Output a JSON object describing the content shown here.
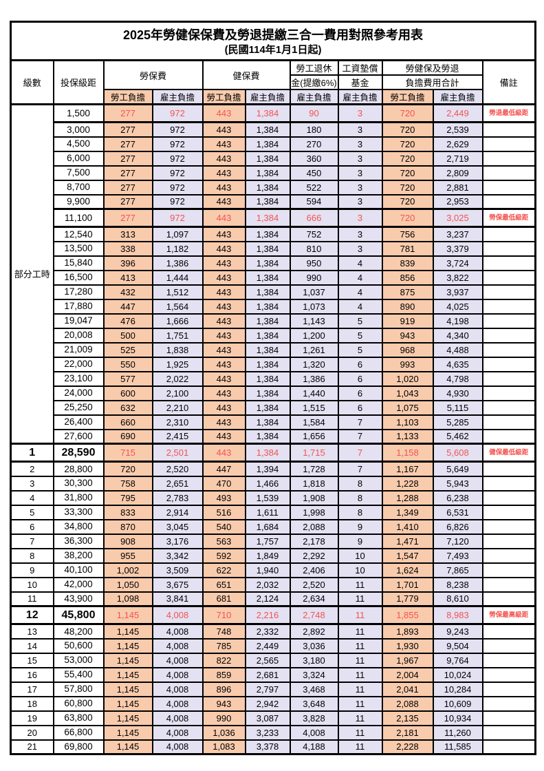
{
  "title": "2025年勞健保保費及勞退提繳三合一費用對照參考用表",
  "subtitle": "(民國114年1月1日起)",
  "header": {
    "level": "級數",
    "bracket": "投保級距",
    "labor_insurance": "勞保費",
    "health_insurance": "健保費",
    "pension_line1": "勞工退休",
    "pension_line2": "金(提繳6%)",
    "wage_fund_line1": "工資墊償",
    "wage_fund_line2": "基金",
    "total_line1": "勞健保及勞退",
    "total_line2": "負擔費用合計",
    "remarks": "備註",
    "employee": "勞工負擔",
    "employer": "雇主負擔"
  },
  "part_time_label": "部分工時",
  "part_time_rowspan": 23,
  "colors": {
    "employee_bg": "#F8CBAD",
    "employer_bg": "#E3E1F2",
    "highlight_text": "#F4534F",
    "border": "#000000",
    "background": "#FFFFFF"
  },
  "col_defs": [
    {
      "key": "br",
      "cls": "bracket",
      "name": "bracket-cell"
    },
    {
      "key": "a",
      "cls": "emp",
      "name": "labor-employee-cell"
    },
    {
      "key": "b",
      "cls": "er",
      "name": "labor-employer-cell"
    },
    {
      "key": "c",
      "cls": "emp",
      "name": "health-employee-cell"
    },
    {
      "key": "d",
      "cls": "er",
      "name": "health-employer-cell"
    },
    {
      "key": "e",
      "cls": "er",
      "name": "pension-employer-cell"
    },
    {
      "key": "f",
      "cls": "er",
      "name": "wage-fund-employer-cell"
    },
    {
      "key": "g",
      "cls": "emp",
      "name": "total-employee-cell"
    },
    {
      "key": "h",
      "cls": "er",
      "name": "total-employer-cell"
    },
    {
      "key": "rm",
      "cls": "remark",
      "name": "remark-cell"
    }
  ],
  "rows": [
    {
      "lv": "",
      "br": "1,500",
      "a": "277",
      "b": "972",
      "c": "443",
      "d": "1,384",
      "e": "90",
      "f": "3",
      "g": "720",
      "h": "2,449",
      "rm": "勞退最低級距",
      "hl": true
    },
    {
      "lv": "",
      "br": "3,000",
      "a": "277",
      "b": "972",
      "c": "443",
      "d": "1,384",
      "e": "180",
      "f": "3",
      "g": "720",
      "h": "2,539"
    },
    {
      "lv": "",
      "br": "4,500",
      "a": "277",
      "b": "972",
      "c": "443",
      "d": "1,384",
      "e": "270",
      "f": "3",
      "g": "720",
      "h": "2,629"
    },
    {
      "lv": "",
      "br": "6,000",
      "a": "277",
      "b": "972",
      "c": "443",
      "d": "1,384",
      "e": "360",
      "f": "3",
      "g": "720",
      "h": "2,719"
    },
    {
      "lv": "",
      "br": "7,500",
      "a": "277",
      "b": "972",
      "c": "443",
      "d": "1,384",
      "e": "450",
      "f": "3",
      "g": "720",
      "h": "2,809"
    },
    {
      "lv": "",
      "br": "8,700",
      "a": "277",
      "b": "972",
      "c": "443",
      "d": "1,384",
      "e": "522",
      "f": "3",
      "g": "720",
      "h": "2,881"
    },
    {
      "lv": "",
      "br": "9,900",
      "a": "277",
      "b": "972",
      "c": "443",
      "d": "1,384",
      "e": "594",
      "f": "3",
      "g": "720",
      "h": "2,953"
    },
    {
      "lv": "",
      "br": "11,100",
      "a": "277",
      "b": "972",
      "c": "443",
      "d": "1,384",
      "e": "666",
      "f": "3",
      "g": "720",
      "h": "3,025",
      "rm": "勞保最低級距",
      "hl": true
    },
    {
      "lv": "",
      "br": "12,540",
      "a": "313",
      "b": "1,097",
      "c": "443",
      "d": "1,384",
      "e": "752",
      "f": "3",
      "g": "756",
      "h": "3,237"
    },
    {
      "lv": "",
      "br": "13,500",
      "a": "338",
      "b": "1,182",
      "c": "443",
      "d": "1,384",
      "e": "810",
      "f": "3",
      "g": "781",
      "h": "3,379"
    },
    {
      "lv": "",
      "br": "15,840",
      "a": "396",
      "b": "1,386",
      "c": "443",
      "d": "1,384",
      "e": "950",
      "f": "4",
      "g": "839",
      "h": "3,724"
    },
    {
      "lv": "",
      "br": "16,500",
      "a": "413",
      "b": "1,444",
      "c": "443",
      "d": "1,384",
      "e": "990",
      "f": "4",
      "g": "856",
      "h": "3,822"
    },
    {
      "lv": "",
      "br": "17,280",
      "a": "432",
      "b": "1,512",
      "c": "443",
      "d": "1,384",
      "e": "1,037",
      "f": "4",
      "g": "875",
      "h": "3,937"
    },
    {
      "lv": "",
      "br": "17,880",
      "a": "447",
      "b": "1,564",
      "c": "443",
      "d": "1,384",
      "e": "1,073",
      "f": "4",
      "g": "890",
      "h": "4,025"
    },
    {
      "lv": "",
      "br": "19,047",
      "a": "476",
      "b": "1,666",
      "c": "443",
      "d": "1,384",
      "e": "1,143",
      "f": "5",
      "g": "919",
      "h": "4,198"
    },
    {
      "lv": "",
      "br": "20,008",
      "a": "500",
      "b": "1,751",
      "c": "443",
      "d": "1,384",
      "e": "1,200",
      "f": "5",
      "g": "943",
      "h": "4,340"
    },
    {
      "lv": "",
      "br": "21,009",
      "a": "525",
      "b": "1,838",
      "c": "443",
      "d": "1,384",
      "e": "1,261",
      "f": "5",
      "g": "968",
      "h": "4,488"
    },
    {
      "lv": "",
      "br": "22,000",
      "a": "550",
      "b": "1,925",
      "c": "443",
      "d": "1,384",
      "e": "1,320",
      "f": "6",
      "g": "993",
      "h": "4,635"
    },
    {
      "lv": "",
      "br": "23,100",
      "a": "577",
      "b": "2,022",
      "c": "443",
      "d": "1,384",
      "e": "1,386",
      "f": "6",
      "g": "1,020",
      "h": "4,798"
    },
    {
      "lv": "",
      "br": "24,000",
      "a": "600",
      "b": "2,100",
      "c": "443",
      "d": "1,384",
      "e": "1,440",
      "f": "6",
      "g": "1,043",
      "h": "4,930"
    },
    {
      "lv": "",
      "br": "25,250",
      "a": "632",
      "b": "2,210",
      "c": "443",
      "d": "1,384",
      "e": "1,515",
      "f": "6",
      "g": "1,075",
      "h": "5,115"
    },
    {
      "lv": "",
      "br": "26,400",
      "a": "660",
      "b": "2,310",
      "c": "443",
      "d": "1,384",
      "e": "1,584",
      "f": "7",
      "g": "1,103",
      "h": "5,285"
    },
    {
      "lv": "",
      "br": "27,600",
      "a": "690",
      "b": "2,415",
      "c": "443",
      "d": "1,384",
      "e": "1,656",
      "f": "7",
      "g": "1,133",
      "h": "5,462"
    },
    {
      "lv": "1",
      "br": "28,590",
      "a": "715",
      "b": "2,501",
      "c": "443",
      "d": "1,384",
      "e": "1,715",
      "f": "7",
      "g": "1,158",
      "h": "5,608",
      "rm": "健保最低級距",
      "hl": true,
      "big": true
    },
    {
      "lv": "2",
      "br": "28,800",
      "a": "720",
      "b": "2,520",
      "c": "447",
      "d": "1,394",
      "e": "1,728",
      "f": "7",
      "g": "1,167",
      "h": "5,649"
    },
    {
      "lv": "3",
      "br": "30,300",
      "a": "758",
      "b": "2,651",
      "c": "470",
      "d": "1,466",
      "e": "1,818",
      "f": "8",
      "g": "1,228",
      "h": "5,943"
    },
    {
      "lv": "4",
      "br": "31,800",
      "a": "795",
      "b": "2,783",
      "c": "493",
      "d": "1,539",
      "e": "1,908",
      "f": "8",
      "g": "1,288",
      "h": "6,238"
    },
    {
      "lv": "5",
      "br": "33,300",
      "a": "833",
      "b": "2,914",
      "c": "516",
      "d": "1,611",
      "e": "1,998",
      "f": "8",
      "g": "1,349",
      "h": "6,531"
    },
    {
      "lv": "6",
      "br": "34,800",
      "a": "870",
      "b": "3,045",
      "c": "540",
      "d": "1,684",
      "e": "2,088",
      "f": "9",
      "g": "1,410",
      "h": "6,826"
    },
    {
      "lv": "7",
      "br": "36,300",
      "a": "908",
      "b": "3,176",
      "c": "563",
      "d": "1,757",
      "e": "2,178",
      "f": "9",
      "g": "1,471",
      "h": "7,120"
    },
    {
      "lv": "8",
      "br": "38,200",
      "a": "955",
      "b": "3,342",
      "c": "592",
      "d": "1,849",
      "e": "2,292",
      "f": "10",
      "g": "1,547",
      "h": "7,493"
    },
    {
      "lv": "9",
      "br": "40,100",
      "a": "1,002",
      "b": "3,509",
      "c": "622",
      "d": "1,940",
      "e": "2,406",
      "f": "10",
      "g": "1,624",
      "h": "7,865"
    },
    {
      "lv": "10",
      "br": "42,000",
      "a": "1,050",
      "b": "3,675",
      "c": "651",
      "d": "2,032",
      "e": "2,520",
      "f": "11",
      "g": "1,701",
      "h": "8,238"
    },
    {
      "lv": "11",
      "br": "43,900",
      "a": "1,098",
      "b": "3,841",
      "c": "681",
      "d": "2,124",
      "e": "2,634",
      "f": "11",
      "g": "1,779",
      "h": "8,610"
    },
    {
      "lv": "12",
      "br": "45,800",
      "a": "1,145",
      "b": "4,008",
      "c": "710",
      "d": "2,216",
      "e": "2,748",
      "f": "11",
      "g": "1,855",
      "h": "8,983",
      "rm": "勞保最高級距",
      "hl": true,
      "big": true
    },
    {
      "lv": "13",
      "br": "48,200",
      "a": "1,145",
      "b": "4,008",
      "c": "748",
      "d": "2,332",
      "e": "2,892",
      "f": "11",
      "g": "1,893",
      "h": "9,243"
    },
    {
      "lv": "14",
      "br": "50,600",
      "a": "1,145",
      "b": "4,008",
      "c": "785",
      "d": "2,449",
      "e": "3,036",
      "f": "11",
      "g": "1,930",
      "h": "9,504"
    },
    {
      "lv": "15",
      "br": "53,000",
      "a": "1,145",
      "b": "4,008",
      "c": "822",
      "d": "2,565",
      "e": "3,180",
      "f": "11",
      "g": "1,967",
      "h": "9,764"
    },
    {
      "lv": "16",
      "br": "55,400",
      "a": "1,145",
      "b": "4,008",
      "c": "859",
      "d": "2,681",
      "e": "3,324",
      "f": "11",
      "g": "2,004",
      "h": "10,024"
    },
    {
      "lv": "17",
      "br": "57,800",
      "a": "1,145",
      "b": "4,008",
      "c": "896",
      "d": "2,797",
      "e": "3,468",
      "f": "11",
      "g": "2,041",
      "h": "10,284"
    },
    {
      "lv": "18",
      "br": "60,800",
      "a": "1,145",
      "b": "4,008",
      "c": "943",
      "d": "2,942",
      "e": "3,648",
      "f": "11",
      "g": "2,088",
      "h": "10,609"
    },
    {
      "lv": "19",
      "br": "63,800",
      "a": "1,145",
      "b": "4,008",
      "c": "990",
      "d": "3,087",
      "e": "3,828",
      "f": "11",
      "g": "2,135",
      "h": "10,934"
    },
    {
      "lv": "20",
      "br": "66,800",
      "a": "1,145",
      "b": "4,008",
      "c": "1,036",
      "d": "3,233",
      "e": "4,008",
      "f": "11",
      "g": "2,181",
      "h": "11,260"
    },
    {
      "lv": "21",
      "br": "69,800",
      "a": "1,145",
      "b": "4,008",
      "c": "1,083",
      "d": "3,378",
      "e": "4,188",
      "f": "11",
      "g": "2,228",
      "h": "11,585"
    }
  ]
}
